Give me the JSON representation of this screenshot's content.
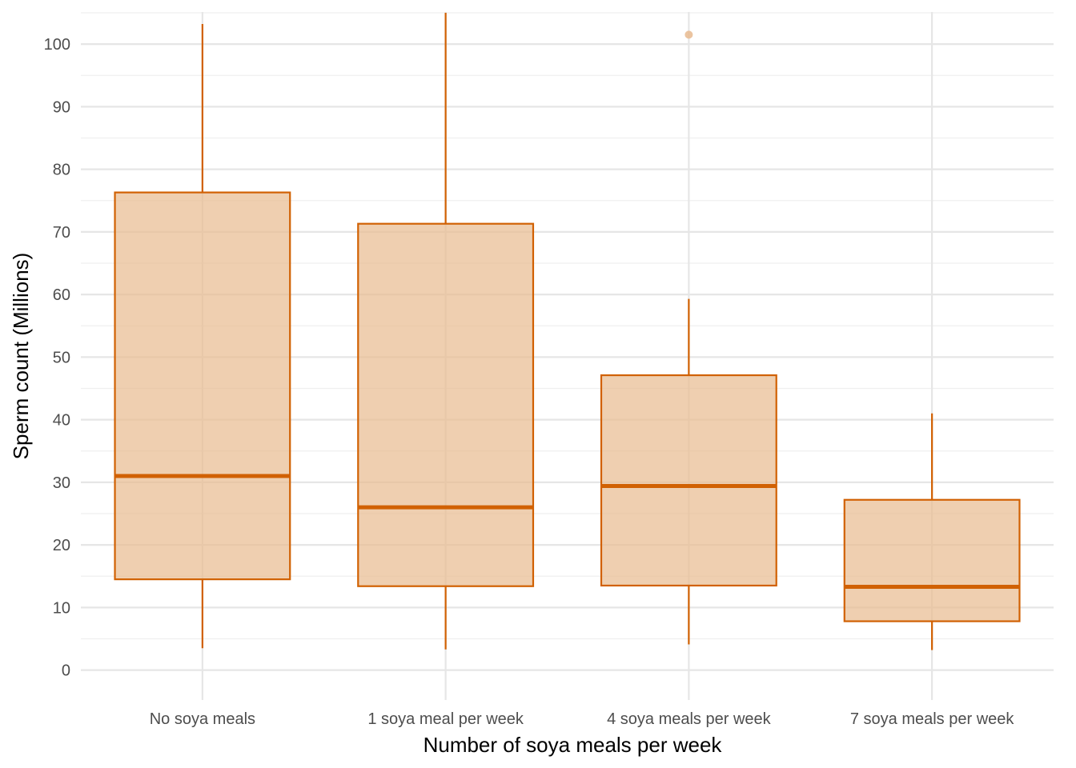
{
  "chart_data": {
    "type": "box",
    "title": "",
    "xlabel": "Number of soya meals per week",
    "ylabel": "Sperm count (Millions)",
    "categories": [
      "No soya meals",
      "1 soya meal per week",
      "4 soya meals per week",
      "7 soya meals per week"
    ],
    "yticks": [
      0,
      10,
      20,
      30,
      40,
      50,
      60,
      70,
      80,
      90,
      100
    ],
    "ytick_labels": [
      "0",
      "10",
      "20",
      "30",
      "40",
      "50",
      "60",
      "70",
      "80",
      "90",
      "100"
    ],
    "ylim": [
      -5,
      105
    ],
    "grid": true,
    "legend": "none",
    "boxes": [
      {
        "category": "No soya meals",
        "whisker_low": 3.5,
        "q1": 14.5,
        "median": 31.0,
        "q3": 76.3,
        "whisker_high": 103.2,
        "outliers": []
      },
      {
        "category": "1 soya meal per week",
        "whisker_low": 3.3,
        "q1": 13.4,
        "median": 26.0,
        "q3": 71.3,
        "whisker_high": 105.0,
        "outliers": []
      },
      {
        "category": "4 soya meals per week",
        "whisker_low": 4.1,
        "q1": 13.5,
        "median": 29.4,
        "q3": 47.1,
        "whisker_high": 59.3,
        "outliers": [
          101.5
        ]
      },
      {
        "category": "7 soya meals per week",
        "whisker_low": 3.2,
        "q1": 7.8,
        "median": 13.3,
        "q3": 27.2,
        "whisker_high": 41.0,
        "outliers": []
      }
    ],
    "colors": {
      "box_fill": "#e8ba8f",
      "box_stroke": "#d16103",
      "outlier_fill": "#e8ba8f",
      "grid_major": "#e6e6e6",
      "grid_minor": "#efefef",
      "tick_text": "#4d4d4d",
      "title_text": "#000000"
    }
  }
}
